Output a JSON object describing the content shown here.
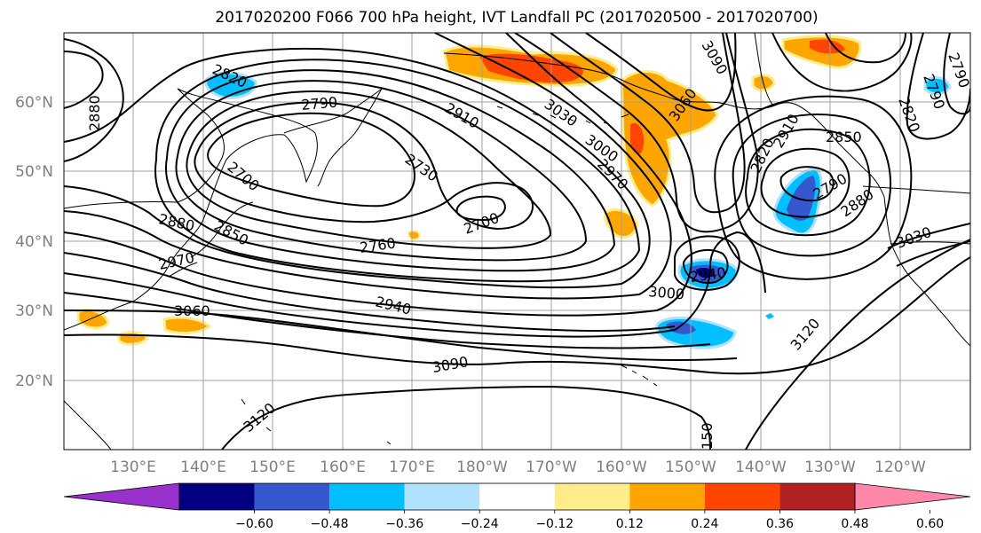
{
  "title": "2017020200 F066 700 hPa height, IVT Landfall PC (2017020500 - 2017020700)",
  "lat_labels": [
    "60°N",
    "50°N",
    "40°N",
    "30°N",
    "20°N"
  ],
  "lon_labels": [
    "130°E",
    "140°E",
    "150°E",
    "160°E",
    "170°E",
    "180°W",
    "170°W",
    "160°W",
    "150°W",
    "140°W",
    "130°W",
    "120°W"
  ],
  "contour_labels": [
    "2820",
    "2880",
    "2790",
    "2910",
    "3030",
    "3090",
    "3060",
    "2730",
    "2700",
    "2700",
    "2880",
    "2850",
    "2970",
    "2760",
    "2970",
    "3000",
    "2940",
    "3060",
    "2940",
    "3090",
    "3120",
    "150",
    "3120",
    "2820",
    "2910",
    "2850",
    "2790",
    "2880",
    "3030",
    "2820",
    "2790",
    "2790",
    "3000"
  ],
  "colorbar": {
    "colors": [
      "#9932cc",
      "#000080",
      "#3658cf",
      "#00bfff",
      "#b0e2ff",
      "#ffffff",
      "#ffec8b",
      "#ffa500",
      "#ff4500",
      "#b22222",
      "#ff88aa"
    ],
    "tick_labels": [
      "−0.60",
      "−0.48",
      "−0.36",
      "−0.24",
      "−0.12",
      "0.12",
      "0.24",
      "0.36",
      "0.48",
      "0.60"
    ]
  },
  "colors": {
    "contour": "#000000",
    "grid": "#a0a0a0",
    "tick_text": "#7f7f7f"
  }
}
